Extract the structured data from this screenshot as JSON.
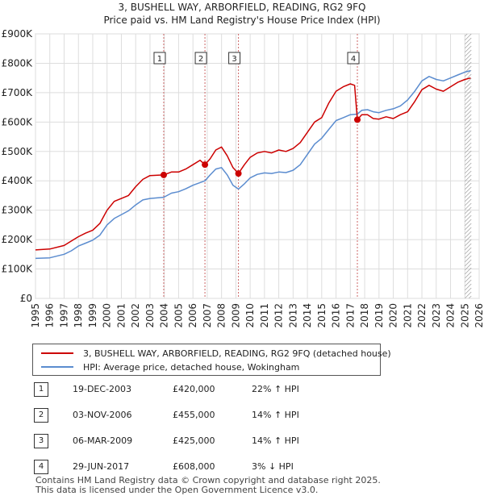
{
  "chart_data": {
    "type": "line",
    "title": "3, BUSHELL WAY, ARBORFIELD, READING, RG2 9FQ",
    "subtitle": "Price paid vs. HM Land Registry's House Price Index (HPI)",
    "x_range": [
      1995,
      2026
    ],
    "ylim": [
      0,
      900000
    ],
    "y_ticks": [
      {
        "value": 0,
        "label": "£0"
      },
      {
        "value": 100000,
        "label": "£100K"
      },
      {
        "value": 200000,
        "label": "£200K"
      },
      {
        "value": 300000,
        "label": "£300K"
      },
      {
        "value": 400000,
        "label": "£400K"
      },
      {
        "value": 500000,
        "label": "£500K"
      },
      {
        "value": 600000,
        "label": "£600K"
      },
      {
        "value": 700000,
        "label": "£700K"
      },
      {
        "value": 800000,
        "label": "£800K"
      },
      {
        "value": 900000,
        "label": "£900K"
      }
    ],
    "x_ticks": [
      1995,
      1996,
      1997,
      1998,
      1999,
      2000,
      2001,
      2002,
      2003,
      2004,
      2005,
      2006,
      2007,
      2008,
      2009,
      2010,
      2011,
      2012,
      2013,
      2014,
      2015,
      2016,
      2017,
      2018,
      2019,
      2020,
      2021,
      2022,
      2023,
      2024,
      2025,
      2026
    ],
    "grid": true,
    "series": [
      {
        "name": "3, BUSHELL WAY, ARBORFIELD, READING, RG2 9FQ (detached house)",
        "color": "#cc0000",
        "points": [
          [
            1995.0,
            165000
          ],
          [
            1996.0,
            168000
          ],
          [
            1997.0,
            180000
          ],
          [
            1997.5,
            195000
          ],
          [
            1998.0,
            210000
          ],
          [
            1998.5,
            222000
          ],
          [
            1999.0,
            232000
          ],
          [
            1999.5,
            255000
          ],
          [
            2000.0,
            300000
          ],
          [
            2000.5,
            330000
          ],
          [
            2001.0,
            340000
          ],
          [
            2001.5,
            350000
          ],
          [
            2002.0,
            380000
          ],
          [
            2002.5,
            405000
          ],
          [
            2003.0,
            418000
          ],
          [
            2003.96,
            420000
          ],
          [
            2004.5,
            430000
          ],
          [
            2005.0,
            430000
          ],
          [
            2005.5,
            440000
          ],
          [
            2006.0,
            455000
          ],
          [
            2006.5,
            470000
          ],
          [
            2006.84,
            455000
          ],
          [
            2007.2,
            475000
          ],
          [
            2007.6,
            505000
          ],
          [
            2008.0,
            515000
          ],
          [
            2008.4,
            485000
          ],
          [
            2008.8,
            445000
          ],
          [
            2009.18,
            425000
          ],
          [
            2009.6,
            455000
          ],
          [
            2010.0,
            480000
          ],
          [
            2010.5,
            495000
          ],
          [
            2011.0,
            500000
          ],
          [
            2011.5,
            495000
          ],
          [
            2012.0,
            505000
          ],
          [
            2012.5,
            500000
          ],
          [
            2013.0,
            510000
          ],
          [
            2013.5,
            530000
          ],
          [
            2014.0,
            565000
          ],
          [
            2014.5,
            600000
          ],
          [
            2015.0,
            615000
          ],
          [
            2015.5,
            665000
          ],
          [
            2016.0,
            705000
          ],
          [
            2016.5,
            720000
          ],
          [
            2017.0,
            730000
          ],
          [
            2017.3,
            725000
          ],
          [
            2017.49,
            608000
          ],
          [
            2017.8,
            625000
          ],
          [
            2018.2,
            625000
          ],
          [
            2018.6,
            612000
          ],
          [
            2019.0,
            610000
          ],
          [
            2019.5,
            618000
          ],
          [
            2020.0,
            612000
          ],
          [
            2020.5,
            625000
          ],
          [
            2021.0,
            635000
          ],
          [
            2021.5,
            670000
          ],
          [
            2022.0,
            710000
          ],
          [
            2022.5,
            725000
          ],
          [
            2023.0,
            712000
          ],
          [
            2023.5,
            705000
          ],
          [
            2024.0,
            720000
          ],
          [
            2024.5,
            735000
          ],
          [
            2025.0,
            745000
          ],
          [
            2025.4,
            750000
          ]
        ]
      },
      {
        "name": "HPI: Average price, detached house, Wokingham",
        "color": "#5b8ccf",
        "points": [
          [
            1995.0,
            136000
          ],
          [
            1996.0,
            138000
          ],
          [
            1997.0,
            150000
          ],
          [
            1997.5,
            162000
          ],
          [
            1998.0,
            178000
          ],
          [
            1998.5,
            188000
          ],
          [
            1999.0,
            198000
          ],
          [
            1999.5,
            215000
          ],
          [
            2000.0,
            250000
          ],
          [
            2000.5,
            272000
          ],
          [
            2001.0,
            285000
          ],
          [
            2001.5,
            298000
          ],
          [
            2002.0,
            318000
          ],
          [
            2002.5,
            335000
          ],
          [
            2003.0,
            340000
          ],
          [
            2003.96,
            344000
          ],
          [
            2004.5,
            358000
          ],
          [
            2005.0,
            363000
          ],
          [
            2005.5,
            373000
          ],
          [
            2006.0,
            385000
          ],
          [
            2006.84,
            400000
          ],
          [
            2007.2,
            420000
          ],
          [
            2007.6,
            440000
          ],
          [
            2008.0,
            445000
          ],
          [
            2008.4,
            420000
          ],
          [
            2008.8,
            385000
          ],
          [
            2009.18,
            372000
          ],
          [
            2009.6,
            390000
          ],
          [
            2010.0,
            410000
          ],
          [
            2010.5,
            422000
          ],
          [
            2011.0,
            427000
          ],
          [
            2011.5,
            425000
          ],
          [
            2012.0,
            430000
          ],
          [
            2012.5,
            428000
          ],
          [
            2013.0,
            436000
          ],
          [
            2013.5,
            455000
          ],
          [
            2014.0,
            490000
          ],
          [
            2014.5,
            525000
          ],
          [
            2015.0,
            545000
          ],
          [
            2015.5,
            575000
          ],
          [
            2016.0,
            605000
          ],
          [
            2016.5,
            615000
          ],
          [
            2017.0,
            625000
          ],
          [
            2017.49,
            627000
          ],
          [
            2017.8,
            640000
          ],
          [
            2018.2,
            642000
          ],
          [
            2018.6,
            635000
          ],
          [
            2019.0,
            632000
          ],
          [
            2019.5,
            640000
          ],
          [
            2020.0,
            645000
          ],
          [
            2020.5,
            655000
          ],
          [
            2021.0,
            675000
          ],
          [
            2021.5,
            705000
          ],
          [
            2022.0,
            740000
          ],
          [
            2022.5,
            755000
          ],
          [
            2023.0,
            745000
          ],
          [
            2023.5,
            740000
          ],
          [
            2024.0,
            750000
          ],
          [
            2024.5,
            760000
          ],
          [
            2025.0,
            770000
          ],
          [
            2025.4,
            775000
          ]
        ]
      }
    ],
    "markers": [
      {
        "label": "1",
        "x": 2003.96,
        "price": 420000
      },
      {
        "label": "2",
        "x": 2006.84,
        "price": 455000
      },
      {
        "label": "3",
        "x": 2009.18,
        "price": 425000
      },
      {
        "label": "4",
        "x": 2017.49,
        "price": 608000
      }
    ],
    "hatched_from": 2025.0
  },
  "legend": {
    "property": "3, BUSHELL WAY, ARBORFIELD, READING, RG2 9FQ (detached house)",
    "hpi": "HPI: Average price, detached house, Wokingham"
  },
  "transactions": [
    {
      "num": "1",
      "date": "19-DEC-2003",
      "price": "£420,000",
      "hpi": "22% ↑ HPI"
    },
    {
      "num": "2",
      "date": "03-NOV-2006",
      "price": "£455,000",
      "hpi": "14% ↑ HPI"
    },
    {
      "num": "3",
      "date": "06-MAR-2009",
      "price": "£425,000",
      "hpi": "14% ↑ HPI"
    },
    {
      "num": "4",
      "date": "29-JUN-2017",
      "price": "£608,000",
      "hpi": "3% ↓ HPI"
    }
  ],
  "footer": {
    "line1": "Contains HM Land Registry data © Crown copyright and database right 2025.",
    "line2": "This data is licensed under the Open Government Licence v3.0."
  },
  "colors": {
    "property_line": "#cc0000",
    "hpi_line": "#5b8ccf",
    "marker_dash": "#cc6666",
    "grid": "#dddddd",
    "plot_bg": "#ffffff"
  }
}
